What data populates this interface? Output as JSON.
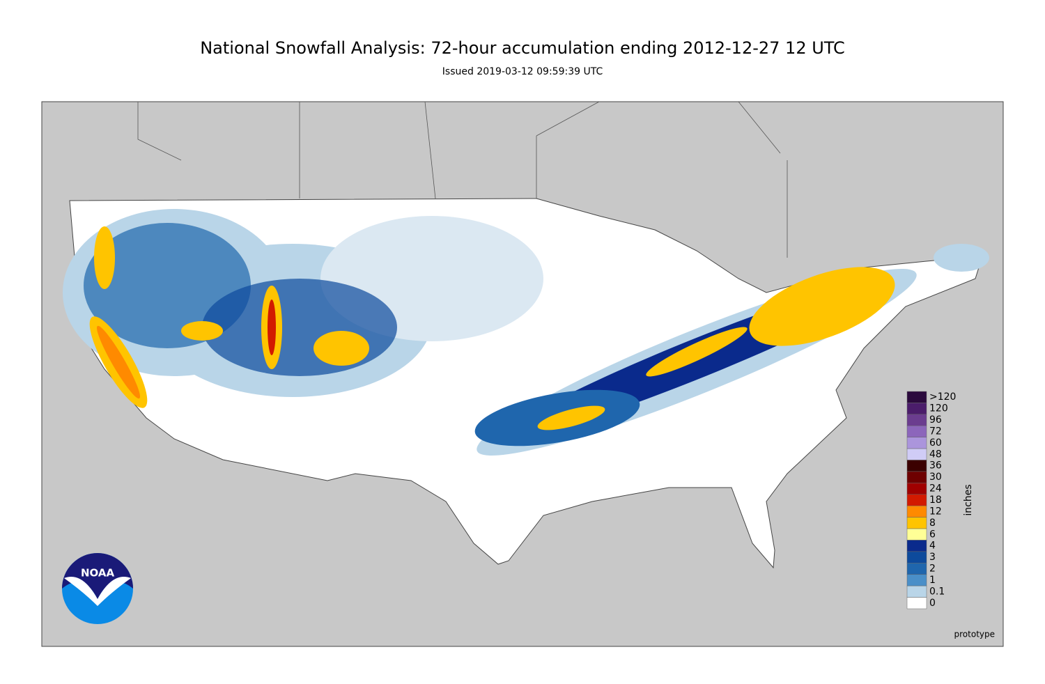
{
  "header": {
    "title": "National Snowfall Analysis: 72-hour accumulation ending 2012-12-27 12 UTC",
    "subtitle": "Issued 2019-03-12 09:59:39 UTC"
  },
  "legend": {
    "unit": "inches",
    "items": [
      {
        "label": ">120",
        "color": "#2b0a3d"
      },
      {
        "label": "120",
        "color": "#4b1d6b"
      },
      {
        "label": "96",
        "color": "#6b3d8f"
      },
      {
        "label": "72",
        "color": "#8c66bb"
      },
      {
        "label": "60",
        "color": "#ab95dc"
      },
      {
        "label": "48",
        "color": "#d0ccf6"
      },
      {
        "label": "36",
        "color": "#3b0000"
      },
      {
        "label": "30",
        "color": "#6e0000"
      },
      {
        "label": "24",
        "color": "#a00000"
      },
      {
        "label": "18",
        "color": "#d21a00"
      },
      {
        "label": "12",
        "color": "#ff8a00"
      },
      {
        "label": "8",
        "color": "#ffc400"
      },
      {
        "label": "6",
        "color": "#ffff96"
      },
      {
        "label": "4",
        "color": "#0a2a8c"
      },
      {
        "label": "3",
        "color": "#0d4a9c"
      },
      {
        "label": "2",
        "color": "#1f66ad"
      },
      {
        "label": "1",
        "color": "#4a8fc8"
      },
      {
        "label": "0.1",
        "color": "#b9d5e8"
      },
      {
        "label": "0",
        "color": "#ffffff"
      }
    ]
  },
  "footer": {
    "note": "prototype"
  },
  "logo": {
    "text": "NOAA"
  }
}
